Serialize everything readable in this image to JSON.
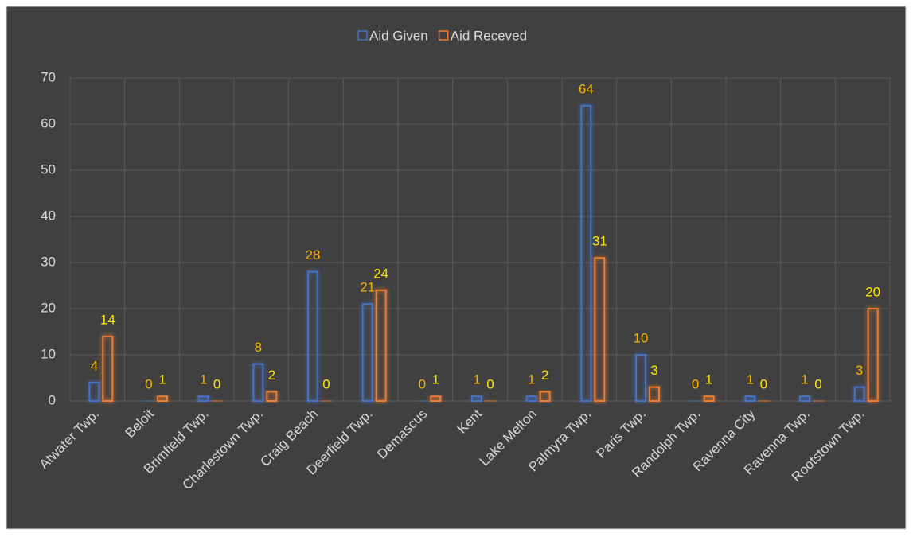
{
  "chart_data": {
    "type": "bar",
    "categories": [
      "Atwater Twp.",
      "Beloit",
      "Brimfield Twp.",
      "Charlestown Twp.",
      "Craig Beach",
      "Deerfield Twp.",
      "Demascus",
      "Kent",
      "Lake Melton",
      "Palmyra Twp.",
      "Paris Twp.",
      "Randolph Twp.",
      "Ravenna City",
      "Ravenna Twp.",
      "Rootstown Twp."
    ],
    "series": [
      {
        "name": "Aid Given",
        "color": "#4472c4",
        "label_color": "#f5b400",
        "values": [
          4,
          0,
          1,
          8,
          28,
          21,
          0,
          1,
          1,
          64,
          10,
          0,
          1,
          1,
          3
        ]
      },
      {
        "name": "Aid Receved",
        "color": "#ed7d31",
        "label_color": "#ffe600",
        "values": [
          14,
          1,
          0,
          2,
          0,
          24,
          1,
          0,
          2,
          31,
          3,
          1,
          0,
          0,
          20
        ]
      }
    ],
    "ylim": [
      0,
      70
    ],
    "yticks": [
      0,
      10,
      20,
      30,
      40,
      50,
      60,
      70
    ],
    "grid": true,
    "legend": "top"
  }
}
